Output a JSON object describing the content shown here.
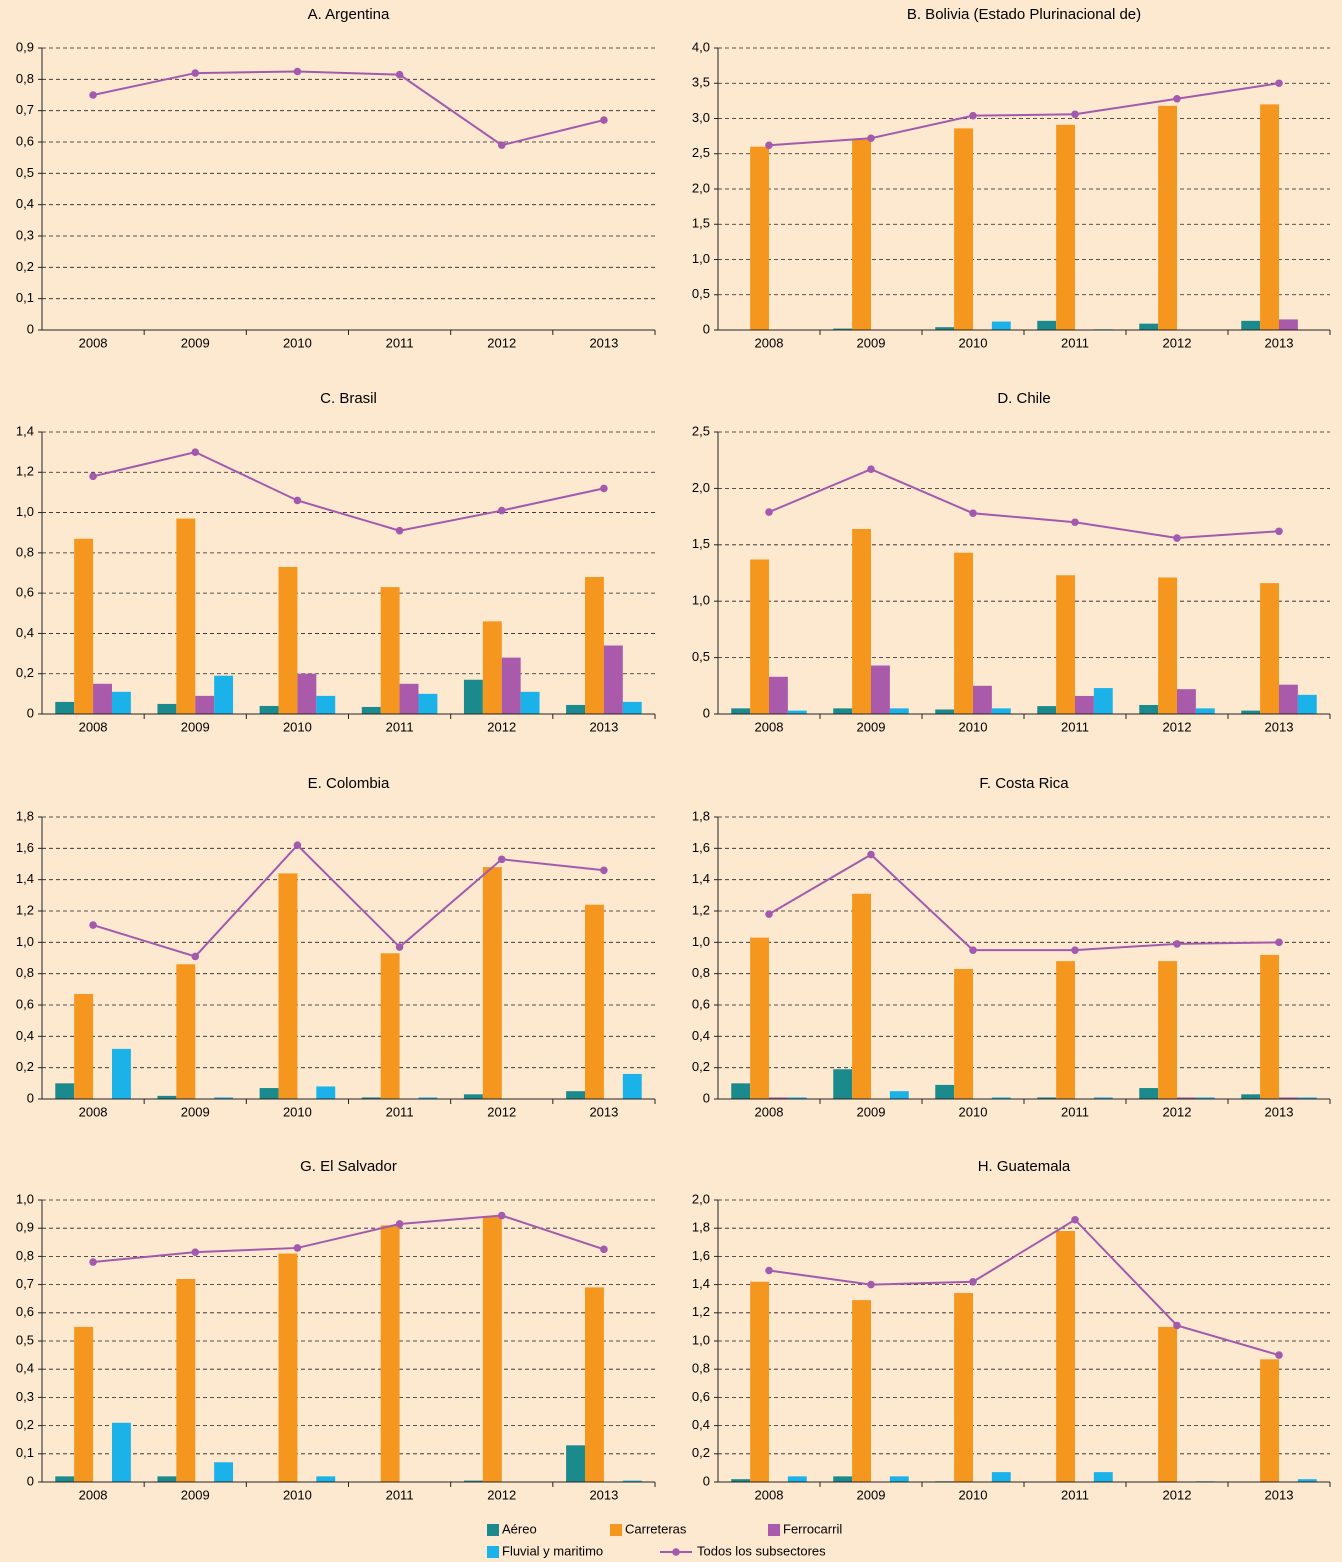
{
  "chart_data": [
    {
      "type": "bar",
      "title": "A. Argentina",
      "categories": [
        "2008",
        "2009",
        "2010",
        "2011",
        "2012",
        "2013"
      ],
      "ylim": [
        0,
        0.9
      ],
      "yticks": [
        0,
        {
          "value": 0.1,
          "label": "0,1"
        },
        {
          "value": 0.2,
          "label": "0,2"
        },
        {
          "value": 0.3,
          "label": "0,3"
        },
        {
          "value": 0.4,
          "label": "0,4"
        },
        {
          "value": 0.5,
          "label": "0,5"
        },
        {
          "value": 0.6,
          "label": "0,6"
        },
        {
          "value": 0.7,
          "label": "0,7"
        },
        {
          "value": 0.8,
          "label": "0,8"
        },
        {
          "value": 0.9,
          "label": "0,9"
        }
      ],
      "series": [
        {
          "values": [
            null,
            null,
            null,
            null,
            null,
            null
          ]
        },
        {
          "values": [
            null,
            null,
            null,
            null,
            null,
            null
          ]
        },
        {
          "values": [
            null,
            null,
            null,
            null,
            null,
            null
          ]
        },
        {
          "values": [
            null,
            null,
            null,
            null,
            null,
            null
          ]
        },
        {
          "values": [
            0.75,
            0.82,
            0.825,
            0.815,
            0.59,
            0.67
          ]
        }
      ]
    },
    {
      "type": "bar",
      "title": "B. Bolivia (Estado Plurinacional de)",
      "categories": [
        "2008",
        "2009",
        "2010",
        "2011",
        "2012",
        "2013"
      ],
      "ylim": [
        0,
        4
      ],
      "yticks": [
        0,
        {
          "value": 0.5,
          "label": "0,5"
        },
        {
          "value": 1,
          "label": "1,0"
        },
        {
          "value": 1.5,
          "label": "1,5"
        },
        {
          "value": 2,
          "label": "2,0"
        },
        {
          "value": 2.5,
          "label": "2,5"
        },
        {
          "value": 3,
          "label": "3,0"
        },
        {
          "value": 3.5,
          "label": "3,5"
        },
        {
          "value": 4,
          "label": "4,0"
        }
      ],
      "series": [
        {
          "values": [
            0,
            0.02,
            0.04,
            0.13,
            0.09,
            0.13
          ]
        },
        {
          "values": [
            2.6,
            2.7,
            2.86,
            2.91,
            3.18,
            3.2
          ]
        },
        {
          "values": [
            0,
            0,
            0,
            0,
            0,
            0.15
          ]
        },
        {
          "values": [
            0,
            0,
            0.12,
            0.01,
            0,
            0
          ]
        },
        {
          "values": [
            2.62,
            2.72,
            3.04,
            3.06,
            3.28,
            3.5
          ]
        }
      ]
    },
    {
      "type": "bar",
      "title": "C. Brasil",
      "categories": [
        "2008",
        "2009",
        "2010",
        "2011",
        "2012",
        "2013"
      ],
      "ylim": [
        0,
        1.4
      ],
      "yticks": [
        0,
        {
          "value": 0.2,
          "label": "0,2"
        },
        {
          "value": 0.4,
          "label": "0,4"
        },
        {
          "value": 0.6,
          "label": "0,6"
        },
        {
          "value": 0.8,
          "label": "0,8"
        },
        {
          "value": 1,
          "label": "1,0"
        },
        {
          "value": 1.2,
          "label": "1,2"
        },
        {
          "value": 1.4,
          "label": "1,4"
        }
      ],
      "series": [
        {
          "values": [
            0.06,
            0.05,
            0.04,
            0.035,
            0.17,
            0.045
          ]
        },
        {
          "values": [
            0.87,
            0.97,
            0.73,
            0.63,
            0.46,
            0.68
          ]
        },
        {
          "values": [
            0.15,
            0.09,
            0.2,
            0.15,
            0.28,
            0.34
          ]
        },
        {
          "values": [
            0.11,
            0.19,
            0.09,
            0.1,
            0.11,
            0.06
          ]
        },
        {
          "values": [
            1.18,
            1.3,
            1.06,
            0.91,
            1.01,
            1.12
          ]
        }
      ]
    },
    {
      "type": "bar",
      "title": "D. Chile",
      "categories": [
        "2008",
        "2009",
        "2010",
        "2011",
        "2012",
        "2013"
      ],
      "ylim": [
        0,
        2.5
      ],
      "yticks": [
        0,
        {
          "value": 0.5,
          "label": "0,5"
        },
        {
          "value": 1,
          "label": "1,0"
        },
        {
          "value": 1.5,
          "label": "1,5"
        },
        {
          "value": 2,
          "label": "2,0"
        },
        {
          "value": 2.5,
          "label": "2,5"
        }
      ],
      "series": [
        {
          "values": [
            0.05,
            0.05,
            0.04,
            0.07,
            0.08,
            0.03
          ]
        },
        {
          "values": [
            1.37,
            1.64,
            1.43,
            1.23,
            1.21,
            1.16
          ]
        },
        {
          "values": [
            0.33,
            0.43,
            0.25,
            0.16,
            0.22,
            0.26
          ]
        },
        {
          "values": [
            0.03,
            0.05,
            0.05,
            0.23,
            0.05,
            0.17
          ]
        },
        {
          "values": [
            1.79,
            2.17,
            1.78,
            1.7,
            1.56,
            1.62
          ]
        }
      ]
    },
    {
      "type": "bar",
      "title": "E. Colombia",
      "categories": [
        "2008",
        "2009",
        "2010",
        "2011",
        "2012",
        "2013"
      ],
      "ylim": [
        0,
        1.8
      ],
      "yticks": [
        0,
        {
          "value": 0.2,
          "label": "0,2"
        },
        {
          "value": 0.4,
          "label": "0,4"
        },
        {
          "value": 0.6,
          "label": "0,6"
        },
        {
          "value": 0.8,
          "label": "0,8"
        },
        {
          "value": 1,
          "label": "1,0"
        },
        {
          "value": 1.2,
          "label": "1,2"
        },
        {
          "value": 1.4,
          "label": "1,4"
        },
        {
          "value": 1.6,
          "label": "1,6"
        },
        {
          "value": 1.8,
          "label": "1,8"
        }
      ],
      "series": [
        {
          "values": [
            0.1,
            0.02,
            0.07,
            0.01,
            0.03,
            0.05
          ]
        },
        {
          "values": [
            0.67,
            0.86,
            1.44,
            0.93,
            1.48,
            1.24
          ]
        },
        {
          "values": [
            0,
            0,
            0,
            0,
            0,
            0
          ]
        },
        {
          "values": [
            0.32,
            0.01,
            0.08,
            0.01,
            0,
            0.16
          ]
        },
        {
          "values": [
            1.11,
            0.91,
            1.62,
            0.97,
            1.53,
            1.46
          ]
        }
      ]
    },
    {
      "type": "bar",
      "title": "F. Costa Rica",
      "categories": [
        "2008",
        "2009",
        "2010",
        "2011",
        "2012",
        "2013"
      ],
      "ylim": [
        0,
        1.8
      ],
      "yticks": [
        0,
        {
          "value": 0.2,
          "label": "0,2"
        },
        {
          "value": 0.4,
          "label": "0,4"
        },
        {
          "value": 0.6,
          "label": "0,6"
        },
        {
          "value": 0.8,
          "label": "0,8"
        },
        {
          "value": 1,
          "label": "1,0"
        },
        {
          "value": 1.2,
          "label": "1,2"
        },
        {
          "value": 1.4,
          "label": "1,4"
        },
        {
          "value": 1.6,
          "label": "1,6"
        },
        {
          "value": 1.8,
          "label": "1,8"
        }
      ],
      "series": [
        {
          "values": [
            0.1,
            0.19,
            0.09,
            0.01,
            0.07,
            0.03
          ]
        },
        {
          "values": [
            1.03,
            1.31,
            0.83,
            0.88,
            0.88,
            0.92
          ]
        },
        {
          "values": [
            0.01,
            0,
            0,
            0,
            0.01,
            0.01
          ]
        },
        {
          "values": [
            0.01,
            0.05,
            0.01,
            0.01,
            0.01,
            0.01
          ]
        },
        {
          "values": [
            1.18,
            1.56,
            0.95,
            0.95,
            0.99,
            1.0
          ]
        }
      ]
    },
    {
      "type": "bar",
      "title": "G. El Salvador",
      "categories": [
        "2008",
        "2009",
        "2010",
        "2011",
        "2012",
        "2013"
      ],
      "ylim": [
        0,
        1
      ],
      "yticks": [
        0,
        {
          "value": 0.1,
          "label": "0,1"
        },
        {
          "value": 0.2,
          "label": "0,2"
        },
        {
          "value": 0.3,
          "label": "0,3"
        },
        {
          "value": 0.4,
          "label": "0,4"
        },
        {
          "value": 0.5,
          "label": "0,5"
        },
        {
          "value": 0.6,
          "label": "0,6"
        },
        {
          "value": 0.7,
          "label": "0,7"
        },
        {
          "value": 0.8,
          "label": "0,8"
        },
        {
          "value": 0.9,
          "label": "0,9"
        },
        {
          "value": 1,
          "label": "1,0"
        }
      ],
      "series": [
        {
          "values": [
            0.02,
            0.02,
            0,
            0,
            0.005,
            0.13
          ]
        },
        {
          "values": [
            0.55,
            0.72,
            0.81,
            0.91,
            0.94,
            0.69
          ]
        },
        {
          "values": [
            0,
            0,
            0,
            0,
            0,
            0
          ]
        },
        {
          "values": [
            0.21,
            0.07,
            0.02,
            0,
            0,
            0.005
          ]
        },
        {
          "values": [
            0.78,
            0.815,
            0.83,
            0.915,
            0.945,
            0.825
          ]
        }
      ]
    },
    {
      "type": "bar",
      "title": "H. Guatemala",
      "categories": [
        "2008",
        "2009",
        "2010",
        "2011",
        "2012",
        "2013"
      ],
      "ylim": [
        0,
        2
      ],
      "yticks": [
        0,
        {
          "value": 0.2,
          "label": "0,2"
        },
        {
          "value": 0.4,
          "label": "0,4"
        },
        {
          "value": 0.6,
          "label": "0,6"
        },
        {
          "value": 0.8,
          "label": "0,8"
        },
        {
          "value": 1,
          "label": "1,0"
        },
        {
          "value": 1.2,
          "label": "1,2"
        },
        {
          "value": 1.4,
          "label": "1,4"
        },
        {
          "value": 1.6,
          "label": "1,6"
        },
        {
          "value": 1.8,
          "label": "1,8"
        },
        {
          "value": 2,
          "label": "2,0"
        }
      ],
      "series": [
        {
          "values": [
            0.02,
            0.04,
            0.005,
            0,
            0,
            0
          ]
        },
        {
          "values": [
            1.42,
            1.29,
            1.34,
            1.78,
            1.1,
            0.87
          ]
        },
        {
          "values": [
            0,
            0,
            0,
            0,
            0,
            0
          ]
        },
        {
          "values": [
            0.04,
            0.04,
            0.07,
            0.07,
            0.005,
            0.02
          ]
        },
        {
          "values": [
            1.5,
            1.4,
            1.42,
            1.86,
            1.11,
            0.9
          ]
        }
      ]
    }
  ],
  "legend": [
    {
      "name": "Aéreo",
      "color": "#1a8a8c",
      "type": "bar"
    },
    {
      "name": "Carreteras",
      "color": "#f5961e",
      "type": "bar"
    },
    {
      "name": "Ferrocarril",
      "color": "#a95aaa",
      "type": "bar"
    },
    {
      "name": "Fluvial y maritimo",
      "color": "#1ab2e8",
      "type": "bar"
    },
    {
      "name": "Todos los subsectores",
      "color": "#a35aae",
      "type": "line"
    }
  ]
}
